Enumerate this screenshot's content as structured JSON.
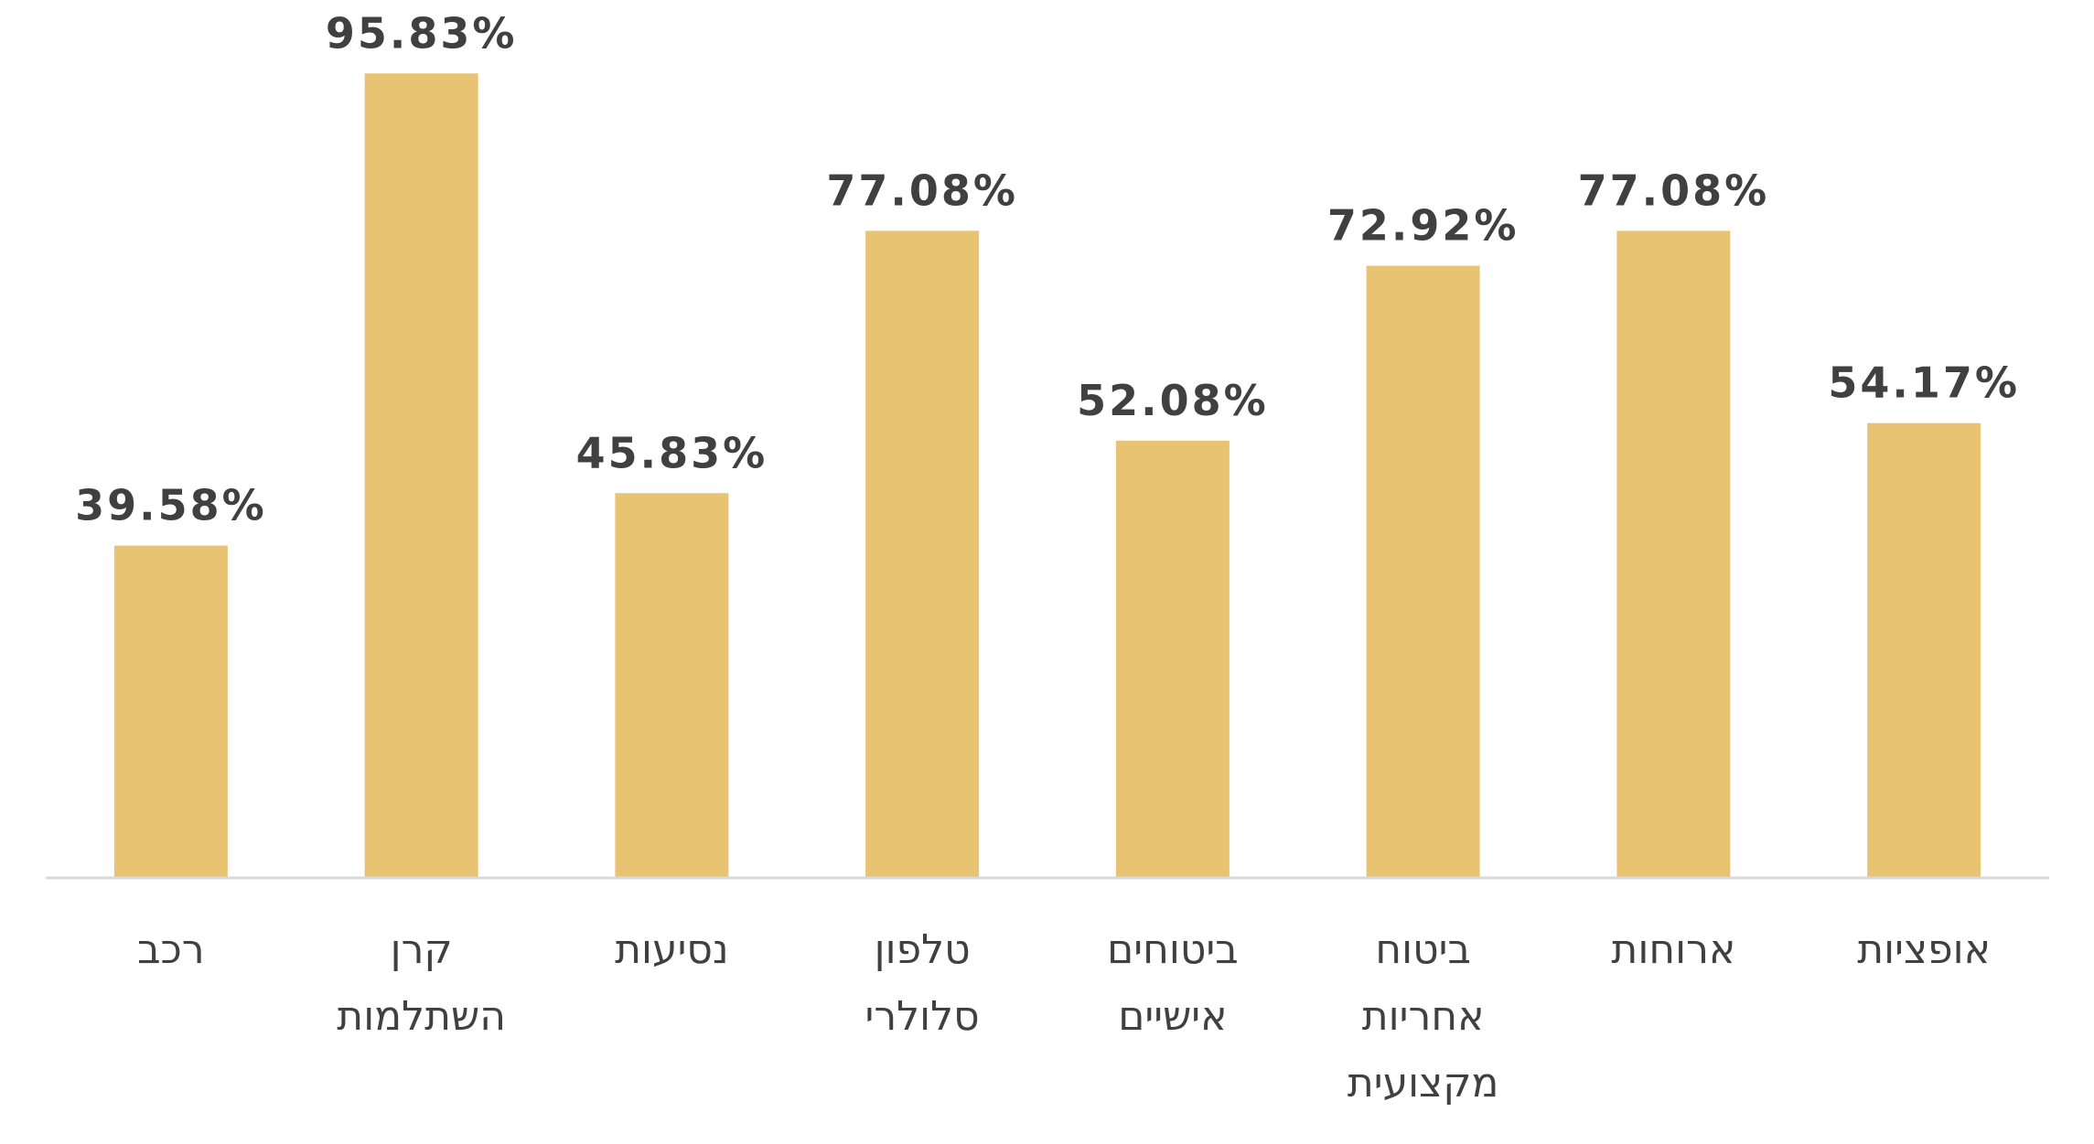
{
  "chart_data": {
    "type": "bar",
    "categories": [
      "רכב",
      "קרן השתלמות",
      "נסיעות",
      "טלפון סלולרי",
      "ביטוחים אישיים",
      "ביטוח אחריות מקצועית",
      "ארוחות",
      "אופציות"
    ],
    "category_lines": [
      [
        "רכב"
      ],
      [
        "קרן",
        "השתלמות"
      ],
      [
        "נסיעות"
      ],
      [
        "טלפון",
        "סלולרי"
      ],
      [
        "ביטוחים",
        "אישיים"
      ],
      [
        "ביטוח",
        "אחריות",
        "מקצועית"
      ],
      [
        "ארוחות"
      ],
      [
        "אופציות"
      ]
    ],
    "values": [
      39.58,
      95.83,
      45.83,
      77.08,
      52.08,
      72.92,
      77.08,
      54.17
    ],
    "value_labels": [
      "39.58%",
      "95.83%",
      "45.83%",
      "77.08%",
      "52.08%",
      "72.92%",
      "77.08%",
      "54.17%"
    ],
    "ylim": [
      0,
      100
    ],
    "grid": false,
    "legend": "none",
    "title": "",
    "xlabel": "",
    "ylabel": "",
    "colors": {
      "bar": "#E8C472",
      "text": "#404040",
      "axis": "#D9D9D9"
    }
  }
}
